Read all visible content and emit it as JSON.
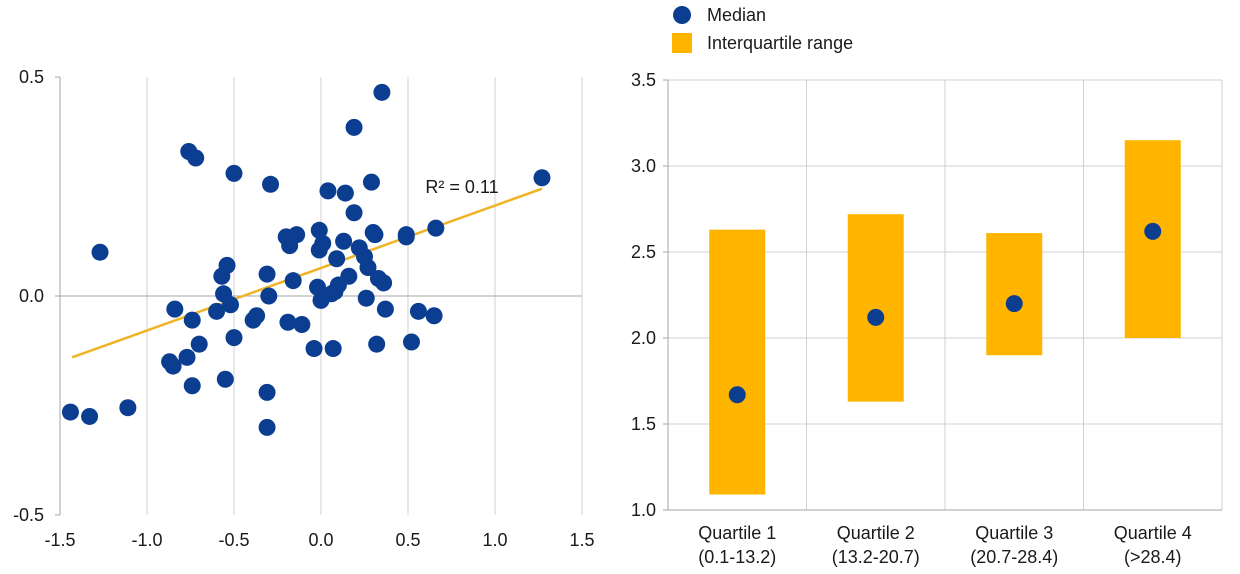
{
  "colors": {
    "point": "#0b3d91",
    "trendline": "#f0b323",
    "bar": "#ffb400",
    "grid": "#d0d0d0",
    "axis": "#a6a6a6"
  },
  "chart_data": [
    {
      "type": "scatter",
      "title": "",
      "xlabel": "",
      "ylabel": "",
      "xlim": [
        -1.5,
        1.5
      ],
      "ylim": [
        -0.5,
        0.5
      ],
      "x_ticks": [
        -1.5,
        -1.0,
        -0.5,
        0.0,
        0.5,
        1.0,
        1.5
      ],
      "x_tick_labels": [
        "-1.5",
        "-1.0",
        "-0.5",
        "0.0",
        "0.5",
        "1.0",
        "1.5"
      ],
      "y_ticks": [
        -0.5,
        0.0,
        0.5
      ],
      "y_tick_labels": [
        "-0.5",
        "0.0",
        "0.5"
      ],
      "grid": "vertical",
      "annotation": "R² = 0.11",
      "trendline": {
        "x": [
          -1.43,
          1.27
        ],
        "y": [
          -0.14,
          0.245
        ]
      },
      "points": [
        [
          -1.44,
          -0.265
        ],
        [
          -1.33,
          -0.275
        ],
        [
          -1.27,
          0.1
        ],
        [
          -1.11,
          -0.255
        ],
        [
          -0.87,
          -0.15
        ],
        [
          -0.85,
          -0.16
        ],
        [
          -0.84,
          -0.03
        ],
        [
          -0.77,
          -0.14
        ],
        [
          -0.76,
          0.33
        ],
        [
          -0.74,
          -0.205
        ],
        [
          -0.74,
          -0.055
        ],
        [
          -0.72,
          0.315
        ],
        [
          -0.7,
          -0.11
        ],
        [
          -0.6,
          -0.035
        ],
        [
          -0.57,
          0.045
        ],
        [
          -0.56,
          0.005
        ],
        [
          -0.55,
          -0.19
        ],
        [
          -0.54,
          0.07
        ],
        [
          -0.52,
          -0.02
        ],
        [
          -0.5,
          0.28
        ],
        [
          -0.5,
          -0.095
        ],
        [
          -0.39,
          -0.055
        ],
        [
          -0.37,
          -0.045
        ],
        [
          -0.31,
          0.05
        ],
        [
          -0.31,
          -0.22
        ],
        [
          -0.31,
          -0.3
        ],
        [
          -0.3,
          0.0
        ],
        [
          -0.29,
          0.255
        ],
        [
          -0.2,
          0.135
        ],
        [
          -0.19,
          -0.06
        ],
        [
          -0.18,
          0.115
        ],
        [
          -0.16,
          0.035
        ],
        [
          -0.14,
          0.14
        ],
        [
          -0.11,
          -0.065
        ],
        [
          -0.04,
          -0.12
        ],
        [
          -0.02,
          0.02
        ],
        [
          -0.01,
          0.15
        ],
        [
          -0.01,
          0.105
        ],
        [
          0.0,
          -0.01
        ],
        [
          0.01,
          0.12
        ],
        [
          0.04,
          0.24
        ],
        [
          0.06,
          0.005
        ],
        [
          0.07,
          -0.12
        ],
        [
          0.08,
          0.01
        ],
        [
          0.09,
          0.085
        ],
        [
          0.1,
          0.025
        ],
        [
          0.13,
          0.125
        ],
        [
          0.14,
          0.235
        ],
        [
          0.16,
          0.045
        ],
        [
          0.19,
          0.385
        ],
        [
          0.19,
          0.19
        ],
        [
          0.22,
          0.11
        ],
        [
          0.25,
          0.09
        ],
        [
          0.26,
          -0.005
        ],
        [
          0.27,
          0.065
        ],
        [
          0.29,
          0.26
        ],
        [
          0.3,
          0.145
        ],
        [
          0.31,
          0.14
        ],
        [
          0.32,
          -0.11
        ],
        [
          0.33,
          0.04
        ],
        [
          0.35,
          0.465
        ],
        [
          0.36,
          0.03
        ],
        [
          0.37,
          -0.03
        ],
        [
          0.49,
          0.14
        ],
        [
          0.49,
          0.135
        ],
        [
          0.52,
          -0.105
        ],
        [
          0.56,
          -0.035
        ],
        [
          0.65,
          -0.045
        ],
        [
          0.66,
          0.155
        ],
        [
          1.27,
          0.27
        ]
      ]
    },
    {
      "type": "range",
      "title": "",
      "ylim": [
        1.0,
        3.5
      ],
      "y_ticks": [
        1.0,
        1.5,
        2.0,
        2.5,
        3.0,
        3.5
      ],
      "y_tick_labels": [
        "1.0",
        "1.5",
        "2.0",
        "2.5",
        "3.0",
        "3.5"
      ],
      "grid": "horizontal",
      "legend": {
        "position": "top-left",
        "items": [
          {
            "key": "median",
            "label": "Median"
          },
          {
            "key": "iqr",
            "label": "Interquartile range"
          }
        ]
      },
      "categories": [
        {
          "line1": "Quartile 1",
          "line2": "(0.1-13.2)"
        },
        {
          "line1": "Quartile 2",
          "line2": "(13.2-20.7)"
        },
        {
          "line1": "Quartile 3",
          "line2": "(20.7-28.4)"
        },
        {
          "line1": "Quartile 4",
          "line2": "(>28.4)"
        }
      ],
      "iqr_low": [
        1.09,
        1.63,
        1.9,
        2.0
      ],
      "iqr_high": [
        2.63,
        2.72,
        2.61,
        3.15
      ],
      "median": [
        1.67,
        2.12,
        2.2,
        2.62
      ]
    }
  ]
}
